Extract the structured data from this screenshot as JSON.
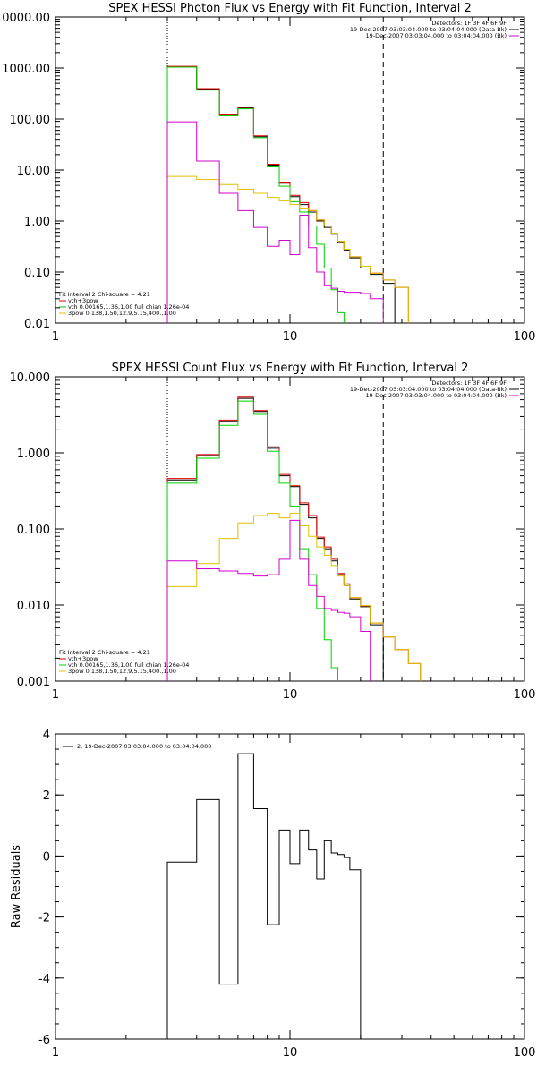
{
  "chart_data": [
    {
      "type": "line",
      "title": "SPEX HESSI Photon Flux vs Energy with Fit Function, Interval 2",
      "xlabel": "",
      "ylabel": "",
      "xscale": "log",
      "yscale": "log",
      "xlim": [
        1,
        100
      ],
      "ylim": [
        0.01,
        10000
      ],
      "x_ticks": [
        1,
        10,
        100
      ],
      "x_tick_labels": [
        "1",
        "10",
        "100"
      ],
      "y_ticks": [
        0.01,
        0.1,
        1,
        10,
        100,
        1000,
        10000
      ],
      "y_tick_labels": [
        "0.01",
        "0.10",
        "1.00",
        "10.00",
        "100.00",
        "1000.00",
        "10000.00"
      ],
      "ref_lines": [
        {
          "x": 3,
          "style": "dotted"
        },
        {
          "x": 25,
          "style": "dashed"
        }
      ],
      "legend_top": [
        "Detectors: 1F 3F 4F 6F 9F",
        "19-Dec-2007 03:03:04.000 to 03:04:04.000 (Data-Bk)",
        "19-Dec-2007 03:03:04.000 to 03:04:04.000 (Bk)"
      ],
      "legend_bottom": [
        "Fit Interval 2   Chi-square = 4.21",
        "vth+3pow",
        "vth 0.00165,1.36,1.00  full chian 1.26e-04",
        "3pow 0.138,1.50,12.9,5.15,400.,1.00"
      ],
      "edges": [
        3,
        4,
        5,
        6,
        7,
        8,
        9,
        10,
        11,
        12,
        13,
        14,
        15,
        16,
        17,
        18,
        20,
        22,
        25,
        28,
        32
      ],
      "series": [
        {
          "name": "Data-Bk",
          "color": "#000000",
          "values": [
            1050,
            380,
            120,
            165,
            45,
            12.5,
            5.5,
            3.0,
            2.1,
            1.5,
            1.0,
            0.75,
            0.55,
            0.38,
            0.27,
            0.19,
            0.12,
            0.09,
            0.06,
            null
          ]
        },
        {
          "name": "vth+3pow",
          "color": "#e00000",
          "values": [
            1080,
            395,
            125,
            170,
            47,
            13.0,
            5.8,
            3.2,
            2.3,
            1.6,
            1.05,
            0.8,
            0.58,
            0.4,
            0.28,
            0.2,
            0.13,
            0.095,
            0.07,
            0.05
          ]
        },
        {
          "name": "vth",
          "color": "#00d000",
          "values": [
            1040,
            370,
            115,
            158,
            43,
            11.5,
            4.8,
            2.4,
            1.5,
            0.8,
            0.35,
            0.12,
            0.045,
            0.016,
            null,
            null,
            null,
            null,
            null,
            null
          ]
        },
        {
          "name": "3pow",
          "color": "#e0c000",
          "values": [
            7.5,
            6.5,
            5.2,
            4.2,
            3.5,
            2.9,
            2.5,
            2.1,
            1.8,
            1.6,
            1.05,
            0.8,
            0.58,
            0.4,
            0.28,
            0.2,
            0.13,
            0.095,
            0.07,
            0.05
          ]
        },
        {
          "name": "Bk",
          "color": "#d000d0",
          "values": [
            88,
            15,
            3.5,
            1.6,
            0.75,
            0.32,
            0.42,
            0.22,
            1.3,
            0.3,
            0.1,
            0.055,
            0.048,
            0.042,
            0.04,
            0.04,
            0.038,
            0.03,
            null,
            null
          ]
        }
      ]
    },
    {
      "type": "line",
      "title": "SPEX HESSI Count Flux vs Energy with Fit Function, Interval 2",
      "xlabel": "",
      "ylabel": "",
      "xscale": "log",
      "yscale": "log",
      "xlim": [
        1,
        100
      ],
      "ylim": [
        0.001,
        10
      ],
      "x_ticks": [
        1,
        10,
        100
      ],
      "x_tick_labels": [
        "1",
        "10",
        "100"
      ],
      "y_ticks": [
        0.001,
        0.01,
        0.1,
        1,
        10
      ],
      "y_tick_labels": [
        "0.001",
        "0.010",
        "0.100",
        "1.000",
        "10.000"
      ],
      "ref_lines": [
        {
          "x": 3,
          "style": "dotted"
        },
        {
          "x": 25,
          "style": "dashed"
        }
      ],
      "legend_top": [
        "Detectors: 1F 3F 4F 6F 9F",
        "19-Dec-2007 03:03:04.000 to 03:04:04.000 (Data-Bk)",
        "19-Dec-2007 03:03:04.000 to 03:04:04.000 (Bk)"
      ],
      "legend_bottom": [
        "Fit Interval 2   Chi-square = 4.21",
        "vth+3pow",
        "vth 0.00165,1.36,1.00  full chian 1.26e-04",
        "3pow 0.138,1.50,12.9,5.15,400.,1.00"
      ],
      "edges": [
        3,
        4,
        5,
        6,
        7,
        8,
        9,
        10,
        11,
        12,
        13,
        14,
        15,
        16,
        17,
        18,
        20,
        22,
        25,
        28,
        32,
        36
      ],
      "series": [
        {
          "name": "Data-Bk",
          "color": "#000000",
          "values": [
            0.44,
            0.92,
            2.6,
            5.2,
            3.5,
            1.15,
            0.5,
            0.36,
            0.21,
            0.14,
            0.075,
            0.055,
            0.038,
            0.025,
            0.018,
            0.012,
            0.0095,
            0.0055,
            null,
            null,
            null
          ]
        },
        {
          "name": "vth+3pow",
          "color": "#e00000",
          "values": [
            0.46,
            0.95,
            2.7,
            5.4,
            3.6,
            1.2,
            0.52,
            0.37,
            0.22,
            0.15,
            0.078,
            0.058,
            0.04,
            0.026,
            0.019,
            0.0125,
            0.0098,
            0.0058,
            0.0038,
            0.0026,
            0.0017
          ]
        },
        {
          "name": "vth",
          "color": "#00d000",
          "values": [
            0.4,
            0.85,
            2.3,
            4.8,
            3.2,
            1.05,
            0.4,
            0.2,
            0.055,
            0.025,
            0.009,
            0.0035,
            0.0015,
            null,
            null,
            null,
            null,
            null,
            null,
            null,
            null
          ]
        },
        {
          "name": "3pow",
          "color": "#e0c000",
          "values": [
            0.0175,
            0.035,
            0.075,
            0.12,
            0.15,
            0.16,
            0.14,
            0.16,
            0.11,
            0.08,
            0.058,
            0.045,
            0.033,
            0.024,
            0.018,
            0.0125,
            0.0098,
            0.0058,
            0.0038,
            0.0026,
            0.0017
          ]
        },
        {
          "name": "Bk",
          "color": "#d000d0",
          "values": [
            0.038,
            0.03,
            0.028,
            0.026,
            0.024,
            0.025,
            0.04,
            0.13,
            0.04,
            0.018,
            0.013,
            0.009,
            0.0085,
            0.008,
            0.0078,
            0.007,
            0.0045,
            null,
            null,
            null,
            null
          ]
        }
      ]
    },
    {
      "type": "line",
      "title": "",
      "xlabel": "",
      "ylabel": "Raw Residuals",
      "xscale": "log",
      "yscale": "linear",
      "xlim": [
        1,
        100
      ],
      "ylim": [
        -6,
        4
      ],
      "x_ticks": [
        1,
        10,
        100
      ],
      "x_tick_labels": [
        "1",
        "10",
        "100"
      ],
      "y_ticks": [
        -6,
        -4,
        -2,
        0,
        2,
        4
      ],
      "y_tick_labels": [
        "-6",
        "-4",
        "-2",
        "0",
        "2",
        "4"
      ],
      "legend_top": [
        "2. 19-Dec-2007 03:03:04.000 to 03:04:04.000"
      ],
      "edges": [
        3,
        4,
        5,
        6,
        7,
        8,
        9,
        10,
        11,
        12,
        13,
        14,
        15,
        16,
        17,
        18,
        20,
        22,
        25
      ],
      "series": [
        {
          "name": "2. 19-Dec-2007 03:03:04.000 to 03:04:04.000",
          "color": "#000000",
          "values": [
            -0.2,
            1.85,
            -4.2,
            3.35,
            1.55,
            -2.25,
            0.85,
            -0.25,
            0.85,
            0.2,
            -0.75,
            0.5,
            0.1,
            0.05,
            -0.05,
            -0.45,
            null,
            null
          ]
        }
      ]
    }
  ]
}
